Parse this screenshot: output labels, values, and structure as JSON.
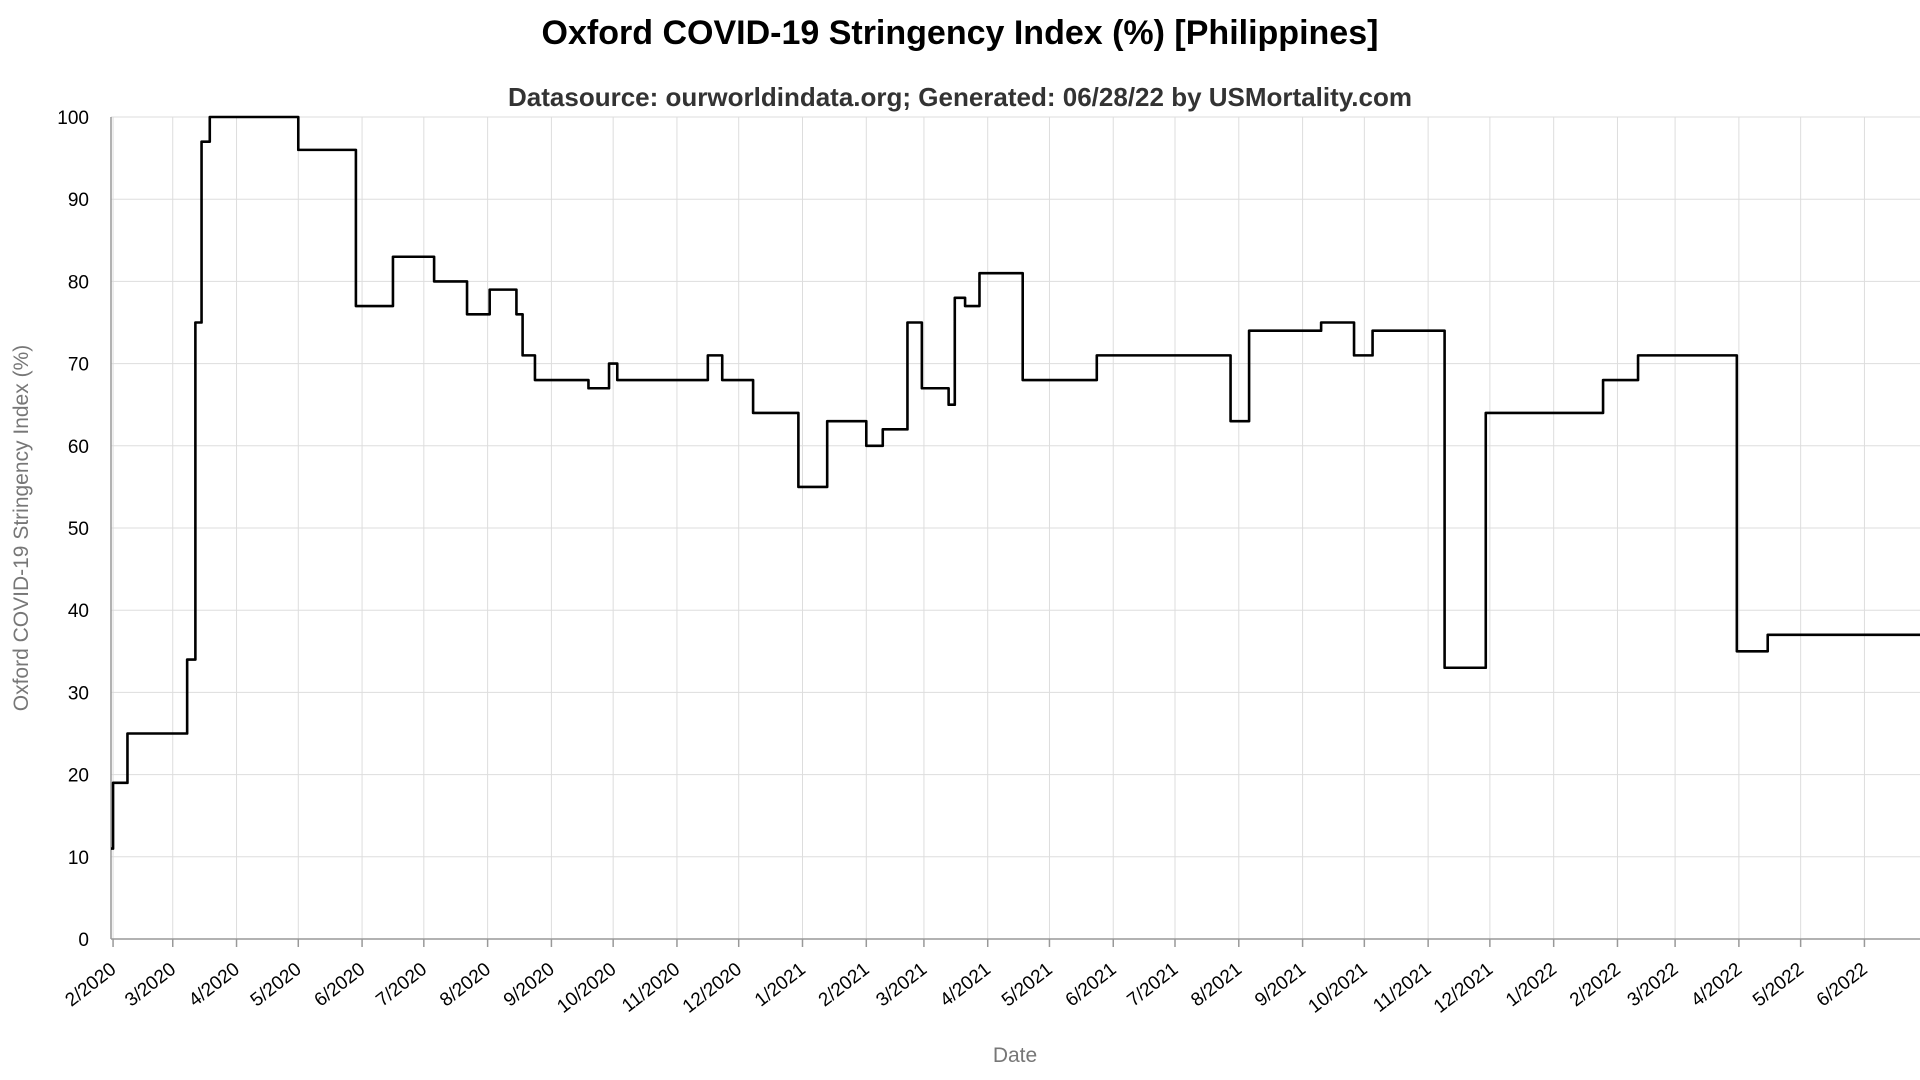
{
  "chart_data": {
    "type": "line",
    "title": "Oxford COVID-19 Stringency Index (%) [Philippines]",
    "subtitle": "Datasource: ourworldindata.org; Generated: 06/28/22 by USMortality.com",
    "xlabel": "Date",
    "ylabel": "Oxford COVID-19 Stringency Index (%)",
    "xlim": [
      "2020-01-31",
      "2022-06-28"
    ],
    "ylim": [
      0,
      100
    ],
    "grid": true,
    "legend": "none",
    "line_color": "#000000",
    "x_tick_labels": [
      {
        "date": "2020-02-01",
        "label": "2/2020"
      },
      {
        "date": "2020-03-01",
        "label": "3/2020"
      },
      {
        "date": "2020-04-01",
        "label": "4/2020"
      },
      {
        "date": "2020-05-01",
        "label": "5/2020"
      },
      {
        "date": "2020-06-01",
        "label": "6/2020"
      },
      {
        "date": "2020-07-01",
        "label": "7/2020"
      },
      {
        "date": "2020-08-01",
        "label": "8/2020"
      },
      {
        "date": "2020-09-01",
        "label": "9/2020"
      },
      {
        "date": "2020-10-01",
        "label": "10/2020"
      },
      {
        "date": "2020-11-01",
        "label": "11/2020"
      },
      {
        "date": "2020-12-01",
        "label": "12/2020"
      },
      {
        "date": "2021-01-01",
        "label": "1/2021"
      },
      {
        "date": "2021-02-01",
        "label": "2/2021"
      },
      {
        "date": "2021-03-01",
        "label": "3/2021"
      },
      {
        "date": "2021-04-01",
        "label": "4/2021"
      },
      {
        "date": "2021-05-01",
        "label": "5/2021"
      },
      {
        "date": "2021-06-01",
        "label": "6/2021"
      },
      {
        "date": "2021-07-01",
        "label": "7/2021"
      },
      {
        "date": "2021-08-01",
        "label": "8/2021"
      },
      {
        "date": "2021-09-01",
        "label": "9/2021"
      },
      {
        "date": "2021-10-01",
        "label": "10/2021"
      },
      {
        "date": "2021-11-01",
        "label": "11/2021"
      },
      {
        "date": "2021-12-01",
        "label": "12/2021"
      },
      {
        "date": "2022-01-01",
        "label": "1/2022"
      },
      {
        "date": "2022-02-01",
        "label": "2/2022"
      },
      {
        "date": "2022-03-01",
        "label": "3/2022"
      },
      {
        "date": "2022-04-01",
        "label": "4/2022"
      },
      {
        "date": "2022-05-01",
        "label": "5/2022"
      },
      {
        "date": "2022-06-01",
        "label": "6/2022"
      }
    ],
    "y_ticks": [
      0,
      10,
      20,
      30,
      40,
      50,
      60,
      70,
      80,
      90,
      100
    ],
    "series": [
      {
        "interpolation": "step-after",
        "points": [
          [
            "2020-01-31",
            11
          ],
          [
            "2020-02-01",
            19
          ],
          [
            "2020-02-08",
            25
          ],
          [
            "2020-03-08",
            34
          ],
          [
            "2020-03-12",
            75
          ],
          [
            "2020-03-15",
            97
          ],
          [
            "2020-03-19",
            100
          ],
          [
            "2020-05-01",
            96
          ],
          [
            "2020-05-29",
            77
          ],
          [
            "2020-06-16",
            83
          ],
          [
            "2020-07-06",
            80
          ],
          [
            "2020-07-22",
            76
          ],
          [
            "2020-08-02",
            79
          ],
          [
            "2020-08-15",
            76
          ],
          [
            "2020-08-18",
            71
          ],
          [
            "2020-08-24",
            68
          ],
          [
            "2020-09-19",
            67
          ],
          [
            "2020-09-29",
            70
          ],
          [
            "2020-10-03",
            68
          ],
          [
            "2020-11-16",
            71
          ],
          [
            "2020-11-23",
            68
          ],
          [
            "2020-12-08",
            64
          ],
          [
            "2020-12-30",
            55
          ],
          [
            "2021-01-13",
            63
          ],
          [
            "2021-02-01",
            60
          ],
          [
            "2021-02-09",
            62
          ],
          [
            "2021-02-21",
            75
          ],
          [
            "2021-02-28",
            67
          ],
          [
            "2021-03-13",
            65
          ],
          [
            "2021-03-16",
            78
          ],
          [
            "2021-03-21",
            77
          ],
          [
            "2021-03-28",
            81
          ],
          [
            "2021-04-18",
            68
          ],
          [
            "2021-05-24",
            71
          ],
          [
            "2021-07-28",
            63
          ],
          [
            "2021-08-06",
            74
          ],
          [
            "2021-09-10",
            75
          ],
          [
            "2021-09-26",
            71
          ],
          [
            "2021-10-05",
            74
          ],
          [
            "2021-11-09",
            33
          ],
          [
            "2021-11-29",
            64
          ],
          [
            "2022-01-25",
            68
          ],
          [
            "2022-02-11",
            71
          ],
          [
            "2022-03-31",
            35
          ],
          [
            "2022-04-15",
            37
          ],
          [
            "2022-06-28",
            37
          ]
        ]
      }
    ]
  }
}
